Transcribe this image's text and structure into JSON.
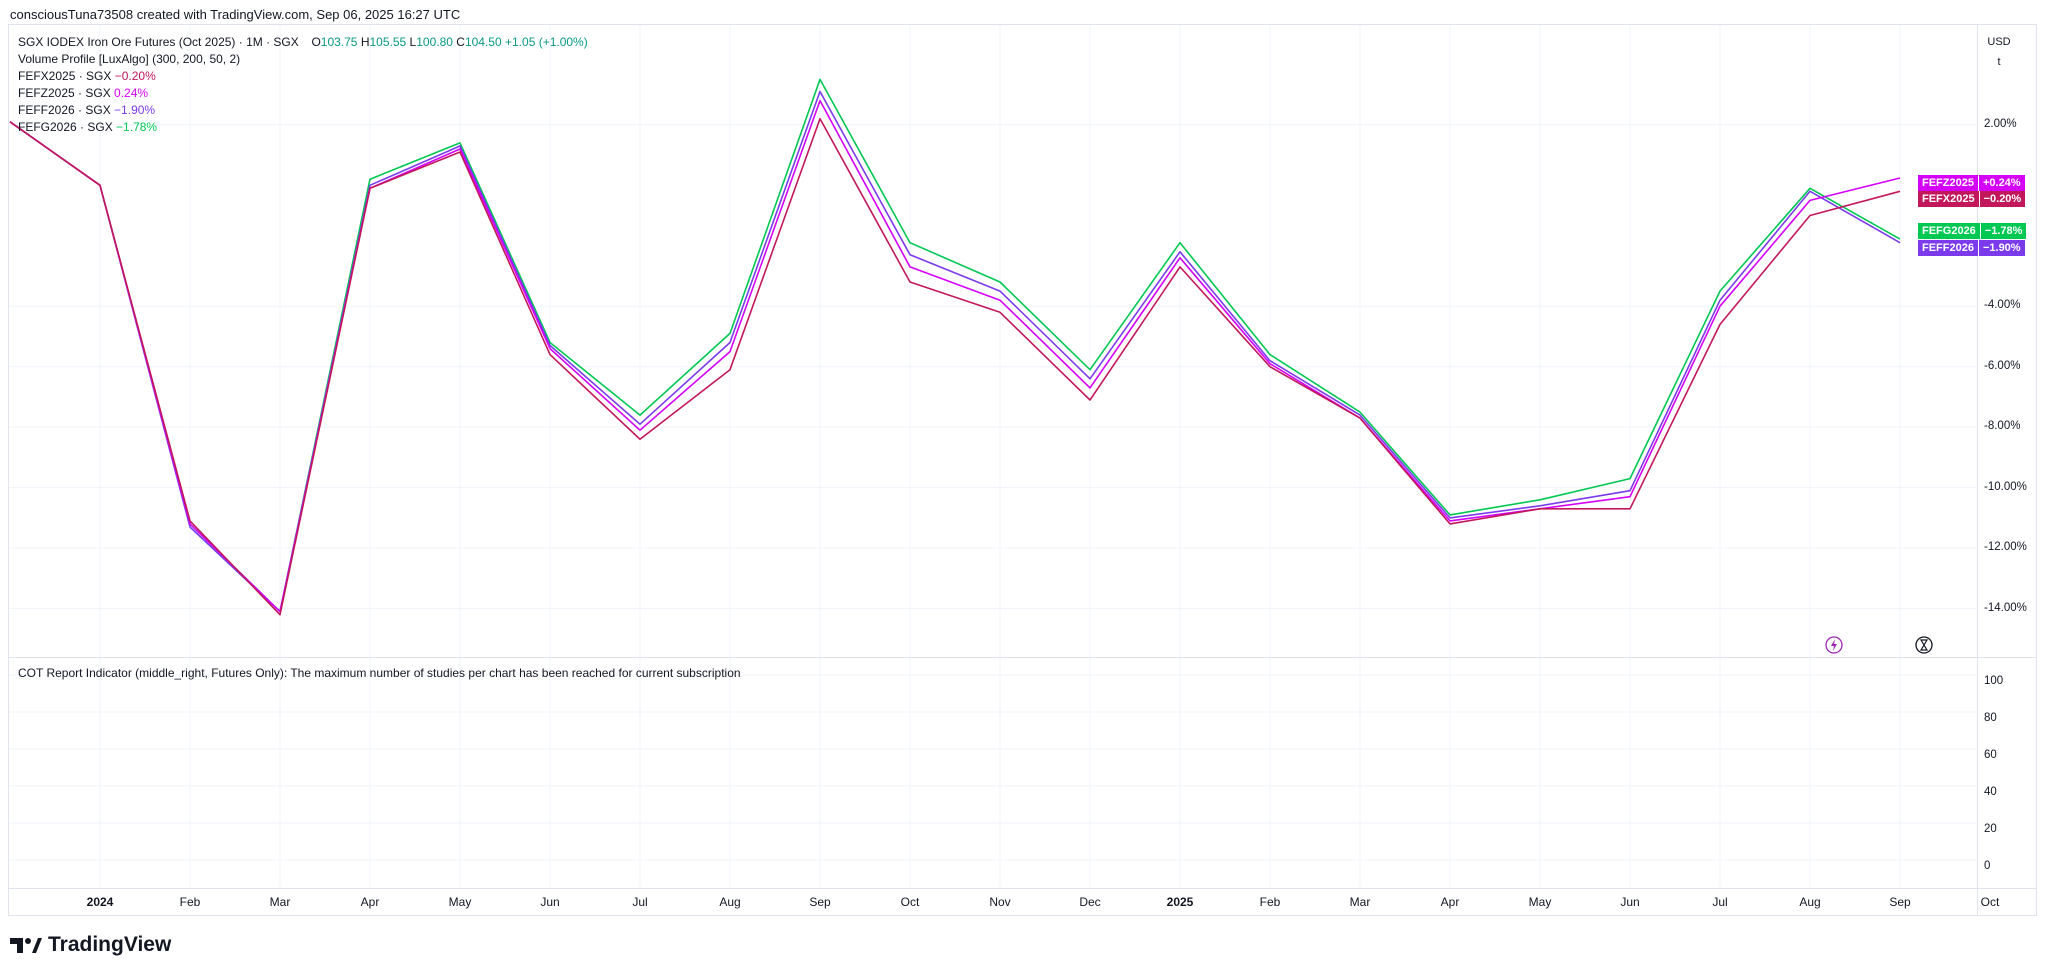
{
  "header": {
    "credit": "consciousTuna73508 created with TradingView.com, Sep 06, 2025 16:27 UTC"
  },
  "legend": {
    "symbol": "SGX IODEX Iron Ore Futures (Oct 2025) · 1M · SGX",
    "ohlc": {
      "o_label": "O",
      "o_value": "103.75",
      "h_label": "H",
      "h_value": "105.55",
      "l_label": "L",
      "l_value": "100.80",
      "c_label": "C",
      "c_value": "104.50",
      "change": "+1.05 (+1.00%)"
    },
    "indicator": "Volume Profile [LuxAlgo] (300, 200, 50, 2)",
    "compare": [
      {
        "name": "FEFX2025 · SGX",
        "value": "−0.20%",
        "color": "#c2185b"
      },
      {
        "name": "FEFZ2025 · SGX",
        "value": "0.24%",
        "color": "#d500f9"
      },
      {
        "name": "FEFF2026 · SGX",
        "value": "−1.90%",
        "color": "#7c3aed"
      },
      {
        "name": "FEFG2026 · SGX",
        "value": "−1.78%",
        "color": "#00c853"
      }
    ]
  },
  "axis_box": {
    "currency": "USD",
    "unit": "t"
  },
  "cot_message": "COT Report Indicator (middle_right, Futures Only): The maximum number of studies per chart has been reached for current subscription",
  "lower_pane_ticks": [
    "100",
    "80",
    "60",
    "40",
    "20",
    "0"
  ],
  "tags": [
    {
      "name": "FEFZ2025",
      "value": "+0.24%",
      "color": "#d500f9",
      "value_color": "#d500f9"
    },
    {
      "name": "FEFX2025",
      "value": "−0.20%",
      "color": "#c2185b",
      "value_color": "#c2185b"
    },
    {
      "name": "FEFG2026",
      "value": "−1.78%",
      "color": "#00c853",
      "value_color": "#00c853"
    },
    {
      "name": "FEFF2026",
      "value": "−1.90%",
      "color": "#7c3aed",
      "value_color": "#7c3aed"
    }
  ],
  "brand": {
    "name": "TradingView"
  },
  "chart_data": {
    "type": "line",
    "x": [
      "2023-12",
      "2024-01",
      "2024-02",
      "2024-03",
      "2024-04",
      "2024-05",
      "2024-06",
      "2024-07",
      "2024-08",
      "2024-09",
      "2024-10",
      "2024-11",
      "2024-12",
      "2025-01",
      "2025-02",
      "2025-03",
      "2025-04",
      "2025-05",
      "2025-06",
      "2025-07",
      "2025-08",
      "2025-09"
    ],
    "x_tick_labels": [
      "2024",
      "Feb",
      "Mar",
      "Apr",
      "May",
      "Jun",
      "Jul",
      "Aug",
      "Sep",
      "Oct",
      "Nov",
      "Dec",
      "2025",
      "Feb",
      "Mar",
      "Apr",
      "May",
      "Jun",
      "Jul",
      "Aug",
      "Sep",
      "Oct"
    ],
    "y_ticks": [
      "2.00%",
      "-4.00%",
      "-6.00%",
      "-8.00%",
      "-10.00%",
      "-12.00%",
      "-14.00%"
    ],
    "ylabel": "",
    "ylim": [
      -15.6,
      5.3
    ],
    "series": [
      {
        "name": "FEFG2026",
        "color": "#00c853",
        "values": [
          2.1,
          0.0,
          -11.2,
          -14.1,
          0.2,
          1.4,
          -5.2,
          -7.6,
          -4.9,
          3.5,
          -1.9,
          -3.2,
          -6.1,
          -1.9,
          -5.6,
          -7.5,
          -10.9,
          -10.4,
          -9.7,
          -3.5,
          -0.1,
          -1.78
        ]
      },
      {
        "name": "FEFF2026",
        "color": "#7c3aed",
        "values": [
          2.1,
          0.0,
          -11.3,
          -14.1,
          0.0,
          1.3,
          -5.3,
          -7.9,
          -5.2,
          3.1,
          -2.3,
          -3.5,
          -6.4,
          -2.2,
          -5.8,
          -7.6,
          -11.0,
          -10.6,
          -10.1,
          -3.8,
          -0.2,
          -1.9
        ]
      },
      {
        "name": "FEFZ2025",
        "color": "#d500f9",
        "values": [
          2.1,
          0.0,
          -11.2,
          -14.1,
          -0.1,
          1.2,
          -5.4,
          -8.1,
          -5.5,
          2.8,
          -2.7,
          -3.8,
          -6.7,
          -2.4,
          -5.9,
          -7.7,
          -11.1,
          -10.7,
          -10.3,
          -4.0,
          -0.5,
          0.24
        ]
      },
      {
        "name": "FEFX2025",
        "color": "#c2185b",
        "values": [
          2.1,
          0.0,
          -11.1,
          -14.2,
          -0.1,
          1.1,
          -5.6,
          -8.4,
          -6.1,
          2.2,
          -3.2,
          -4.2,
          -7.1,
          -2.7,
          -6.0,
          -7.7,
          -11.2,
          -10.7,
          -10.7,
          -4.6,
          -1.0,
          -0.2
        ]
      }
    ]
  }
}
